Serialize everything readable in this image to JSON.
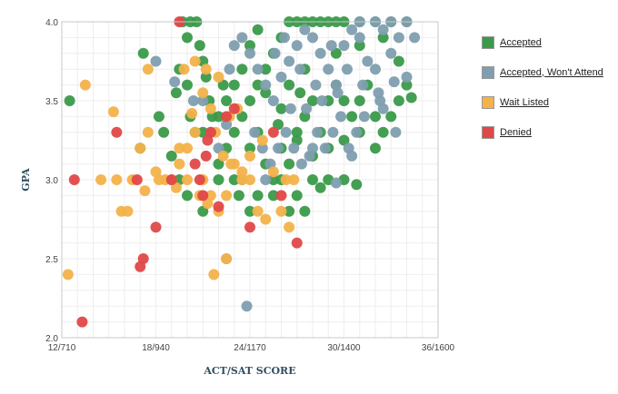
{
  "chart_data": {
    "type": "scatter",
    "title": "",
    "xlabel": "ACT/SAT SCORE",
    "ylabel": "GPA",
    "xlim": [
      12,
      36
    ],
    "ylim": [
      2.0,
      4.0
    ],
    "xticks": [
      {
        "value": 12,
        "label": "12/710"
      },
      {
        "value": 18,
        "label": "18/940"
      },
      {
        "value": 24,
        "label": "24/1170"
      },
      {
        "value": 30,
        "label": "30/1400"
      },
      {
        "value": 36,
        "label": "36/1600"
      }
    ],
    "yticks": [
      {
        "value": 2.0,
        "label": "2.0"
      },
      {
        "value": 2.5,
        "label": "2.5"
      },
      {
        "value": 3.0,
        "label": "3.0"
      },
      {
        "value": 3.5,
        "label": "3.5"
      },
      {
        "value": 4.0,
        "label": "4.0"
      }
    ],
    "grid": true,
    "legend_position": "right",
    "series": [
      {
        "name": "Accepted",
        "color": "#3a9a4a",
        "points": [
          [
            12.5,
            3.5
          ],
          [
            17.2,
            3.8
          ],
          [
            17,
            3.2
          ],
          [
            18.5,
            3.3
          ],
          [
            19,
            3.15
          ],
          [
            19.3,
            3.55
          ],
          [
            19.5,
            3.7
          ],
          [
            20,
            3.6
          ],
          [
            20,
            3.9
          ],
          [
            19.7,
            4.0
          ],
          [
            20.2,
            4.0
          ],
          [
            20.6,
            4.0
          ],
          [
            20.8,
            3.85
          ],
          [
            21,
            3.75
          ],
          [
            21.2,
            3.65
          ],
          [
            21.4,
            3.5
          ],
          [
            21.6,
            3.4
          ],
          [
            20.2,
            3.4
          ],
          [
            20.5,
            3.3
          ],
          [
            21,
            3.3
          ],
          [
            22,
            3.4
          ],
          [
            22.5,
            3.5
          ],
          [
            22.3,
            3.6
          ],
          [
            23,
            3.3
          ],
          [
            23.5,
            3.4
          ],
          [
            24,
            3.5
          ],
          [
            24.5,
            3.6
          ],
          [
            25,
            3.7
          ],
          [
            25.5,
            3.8
          ],
          [
            26,
            3.9
          ],
          [
            26.5,
            4.0
          ],
          [
            27,
            4.0
          ],
          [
            27.5,
            4.0
          ],
          [
            28,
            4.0
          ],
          [
            28.5,
            4.0
          ],
          [
            29,
            4.0
          ],
          [
            29.5,
            4.0
          ],
          [
            30,
            4.0
          ],
          [
            31,
            4.0
          ],
          [
            32,
            4.0
          ],
          [
            33,
            4.0
          ],
          [
            34,
            4.0
          ],
          [
            24,
            3.2
          ],
          [
            24.5,
            3.3
          ],
          [
            25,
            3.1
          ],
          [
            25.5,
            3.0
          ],
          [
            26,
            3.2
          ],
          [
            26.5,
            3.1
          ],
          [
            27,
            3.3
          ],
          [
            27.5,
            3.4
          ],
          [
            28,
            3.5
          ],
          [
            28.5,
            3.3
          ],
          [
            29,
            3.5
          ],
          [
            29.5,
            3.6
          ],
          [
            30,
            3.5
          ],
          [
            30.5,
            3.4
          ],
          [
            31,
            3.5
          ],
          [
            31.5,
            3.6
          ],
          [
            32,
            3.4
          ],
          [
            32.5,
            3.3
          ],
          [
            33,
            3.4
          ],
          [
            33.5,
            3.5
          ],
          [
            34,
            3.6
          ],
          [
            34.3,
            3.52
          ],
          [
            22,
            3.1
          ],
          [
            22.5,
            3.2
          ],
          [
            23,
            3.0
          ],
          [
            23.3,
            2.9
          ],
          [
            24,
            2.8
          ],
          [
            24.5,
            2.9
          ],
          [
            25.5,
            2.9
          ],
          [
            26,
            3.0
          ],
          [
            26.5,
            2.8
          ],
          [
            27,
            2.9
          ],
          [
            27.5,
            2.8
          ],
          [
            28,
            3.0
          ],
          [
            29,
            3.0
          ],
          [
            30,
            3.0
          ],
          [
            30.8,
            2.97
          ],
          [
            20,
            2.9
          ],
          [
            21,
            2.8
          ],
          [
            19.5,
            3.0
          ],
          [
            22,
            3.0
          ],
          [
            18.2,
            3.4
          ],
          [
            23,
            3.6
          ],
          [
            23.5,
            3.7
          ],
          [
            24,
            3.85
          ],
          [
            24.5,
            3.95
          ],
          [
            25,
            3.55
          ],
          [
            26,
            3.45
          ],
          [
            27,
            3.25
          ],
          [
            28,
            3.15
          ],
          [
            29,
            3.2
          ],
          [
            30,
            3.25
          ],
          [
            31,
            3.3
          ],
          [
            32,
            3.2
          ],
          [
            28.5,
            2.95
          ],
          [
            26.5,
            3.6
          ],
          [
            27.5,
            3.7
          ],
          [
            29.5,
            3.8
          ],
          [
            31,
            3.85
          ],
          [
            32.5,
            3.9
          ],
          [
            33.5,
            3.75
          ],
          [
            25.8,
            3.35
          ],
          [
            27.2,
            3.55
          ]
        ]
      },
      {
        "name": "Accepted, Won't Attend",
        "color": "#7f9eaf",
        "points": [
          [
            18,
            3.75
          ],
          [
            19.2,
            3.62
          ],
          [
            20.4,
            3.5
          ],
          [
            21.5,
            3.3
          ],
          [
            22,
            3.2
          ],
          [
            22.7,
            3.7
          ],
          [
            23,
            3.85
          ],
          [
            23.5,
            3.9
          ],
          [
            24,
            3.8
          ],
          [
            24.5,
            3.7
          ],
          [
            25,
            3.6
          ],
          [
            25.5,
            3.5
          ],
          [
            26,
            3.65
          ],
          [
            26.5,
            3.75
          ],
          [
            27,
            3.85
          ],
          [
            27.5,
            3.95
          ],
          [
            28,
            3.9
          ],
          [
            28.5,
            3.8
          ],
          [
            29,
            3.7
          ],
          [
            29.5,
            3.6
          ],
          [
            30,
            3.85
          ],
          [
            30.5,
            3.95
          ],
          [
            31,
            3.9
          ],
          [
            31.5,
            3.75
          ],
          [
            32,
            3.7
          ],
          [
            32.5,
            3.95
          ],
          [
            33,
            3.8
          ],
          [
            33.5,
            3.9
          ],
          [
            34,
            4.0
          ],
          [
            34.5,
            3.9
          ],
          [
            31,
            4.0
          ],
          [
            32,
            4.0
          ],
          [
            33,
            4.0
          ],
          [
            24.3,
            3.3
          ],
          [
            24.8,
            3.2
          ],
          [
            25.3,
            3.1
          ],
          [
            25.8,
            3.2
          ],
          [
            26.3,
            3.3
          ],
          [
            26.8,
            3.2
          ],
          [
            27.3,
            3.1
          ],
          [
            27.8,
            3.15
          ],
          [
            28.3,
            3.3
          ],
          [
            28.8,
            3.2
          ],
          [
            29.3,
            3.3
          ],
          [
            29.8,
            3.4
          ],
          [
            30.3,
            3.2
          ],
          [
            30.8,
            3.3
          ],
          [
            31.3,
            3.4
          ],
          [
            32.3,
            3.5
          ],
          [
            33.3,
            3.3
          ],
          [
            22.5,
            2.5
          ],
          [
            23.8,
            2.2
          ],
          [
            28,
            3.2
          ],
          [
            30.5,
            3.15
          ],
          [
            32.5,
            3.45
          ],
          [
            34,
            3.65
          ],
          [
            29.5,
            2.98
          ],
          [
            25,
            3.0
          ],
          [
            23.5,
            3.0
          ],
          [
            22.5,
            3.35
          ],
          [
            21,
            3.5
          ],
          [
            26.2,
            3.9
          ],
          [
            27.2,
            3.7
          ],
          [
            28.2,
            3.6
          ],
          [
            29.2,
            3.85
          ],
          [
            30.2,
            3.7
          ],
          [
            31.2,
            3.6
          ],
          [
            32.2,
            3.55
          ],
          [
            33.2,
            3.62
          ],
          [
            27.6,
            3.45
          ],
          [
            28.6,
            3.5
          ],
          [
            29.6,
            3.55
          ],
          [
            26.6,
            3.45
          ],
          [
            25.6,
            3.8
          ]
        ]
      },
      {
        "name": "Wait Listed",
        "color": "#f3b24a",
        "points": [
          [
            12.4,
            2.4
          ],
          [
            13.5,
            3.6
          ],
          [
            14.5,
            3.0
          ],
          [
            15.5,
            3.0
          ],
          [
            15.3,
            3.43
          ],
          [
            15.8,
            2.8
          ],
          [
            16.5,
            3.0
          ],
          [
            17.3,
            2.93
          ],
          [
            17.5,
            3.3
          ],
          [
            18,
            3.05
          ],
          [
            18.6,
            3.0
          ],
          [
            19,
            3.0
          ],
          [
            19.5,
            3.1
          ],
          [
            20,
            3.2
          ],
          [
            20.5,
            3.3
          ],
          [
            21,
            3.0
          ],
          [
            21.5,
            2.9
          ],
          [
            22,
            2.8
          ],
          [
            22.5,
            2.9
          ],
          [
            23,
            3.1
          ],
          [
            23.5,
            3.0
          ],
          [
            24,
            3.0
          ],
          [
            24.5,
            2.8
          ],
          [
            25,
            2.75
          ],
          [
            26,
            2.8
          ],
          [
            26.5,
            2.7
          ],
          [
            17.5,
            3.7
          ],
          [
            19.5,
            3.2
          ],
          [
            20,
            3.0
          ],
          [
            20.3,
            3.42
          ],
          [
            21,
            3.55
          ],
          [
            21.5,
            3.45
          ],
          [
            22,
            3.65
          ],
          [
            22.5,
            2.5
          ],
          [
            21.7,
            2.4
          ],
          [
            19.8,
            3.7
          ],
          [
            20.5,
            3.75
          ],
          [
            21.2,
            3.7
          ],
          [
            22.8,
            3.1
          ],
          [
            23.5,
            3.05
          ],
          [
            24,
            3.15
          ],
          [
            25.5,
            3.05
          ],
          [
            26.3,
            3.0
          ],
          [
            22.3,
            3.15
          ],
          [
            21.8,
            3.3
          ],
          [
            20.8,
            2.9
          ],
          [
            21.3,
            2.85
          ],
          [
            19.3,
            2.95
          ],
          [
            18.2,
            3.0
          ],
          [
            16.2,
            2.8
          ],
          [
            17,
            3.2
          ],
          [
            24.8,
            3.25
          ],
          [
            26.8,
            3.0
          ],
          [
            22.7,
            3.4
          ],
          [
            23.2,
            3.45
          ]
        ]
      },
      {
        "name": "Denied",
        "color": "#e04848",
        "points": [
          [
            12.8,
            3.0
          ],
          [
            13.3,
            2.1
          ],
          [
            15.5,
            3.3
          ],
          [
            16.8,
            3.0
          ],
          [
            17,
            2.45
          ],
          [
            17.2,
            2.5
          ],
          [
            18,
            2.7
          ],
          [
            19,
            3.0
          ],
          [
            19.5,
            4.0
          ],
          [
            20.5,
            3.1
          ],
          [
            20.8,
            3.0
          ],
          [
            21,
            2.9
          ],
          [
            21.2,
            3.15
          ],
          [
            21.5,
            3.3
          ],
          [
            22,
            2.83
          ],
          [
            22.5,
            3.4
          ],
          [
            23,
            3.45
          ],
          [
            24,
            2.7
          ],
          [
            26,
            2.9
          ],
          [
            27,
            2.6
          ],
          [
            21.3,
            3.25
          ],
          [
            25.5,
            3.3
          ]
        ]
      }
    ]
  }
}
